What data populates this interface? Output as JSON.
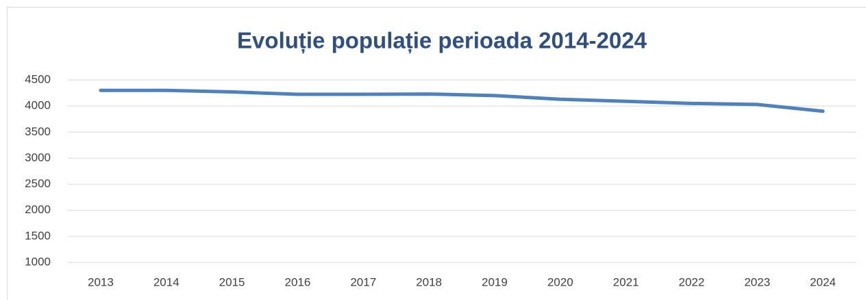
{
  "chart_data": {
    "type": "line",
    "title": "Evoluție populație perioada 2014-2024",
    "categories": [
      "2013",
      "2014",
      "2015",
      "2016",
      "2017",
      "2018",
      "2019",
      "2020",
      "2021",
      "2022",
      "2023",
      "2024"
    ],
    "series": [
      {
        "color": "#4f81bd",
        "values": [
          4300,
          4300,
          4270,
          4225,
          4225,
          4230,
          4200,
          4130,
          4090,
          4050,
          4030,
          3900
        ]
      }
    ],
    "ylim": [
      1000,
      4500
    ],
    "yticks": [
      1000,
      1500,
      2000,
      2500,
      3000,
      3500,
      4000,
      4500
    ],
    "grid": true
  }
}
